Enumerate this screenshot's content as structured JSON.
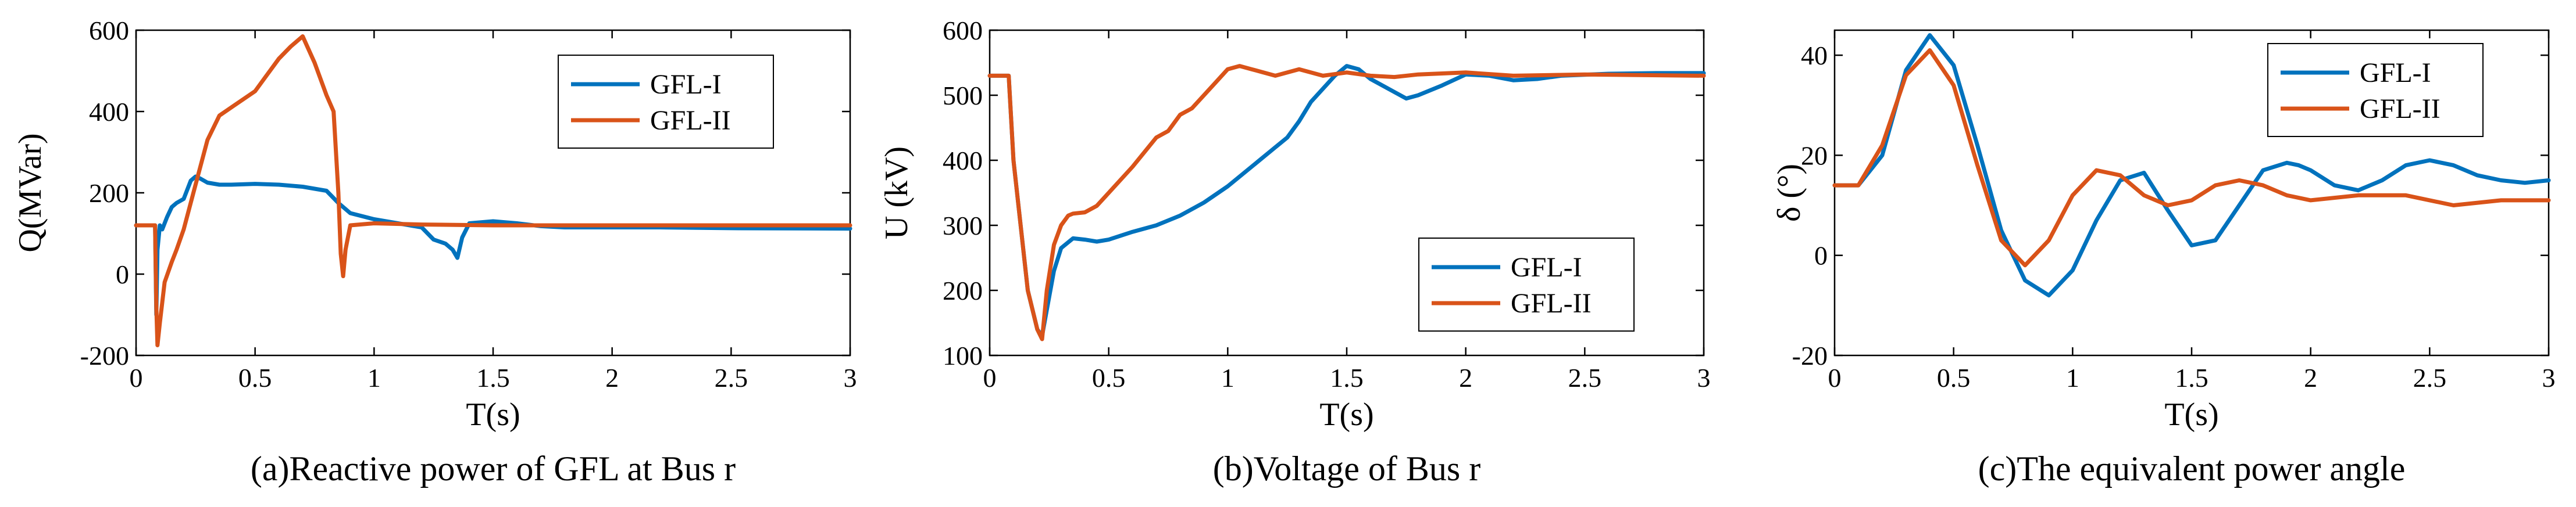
{
  "colors": {
    "gfl1": "#0072BD",
    "gfl2": "#D95319"
  },
  "chart_data": [
    {
      "type": "line",
      "caption": "(a)Reactive power of GFL at Bus r",
      "xlabel": "T(s)",
      "ylabel": "Q(MVar)",
      "xlim": [
        0,
        3
      ],
      "ylim": [
        -200,
        600
      ],
      "xticks": [
        "0",
        "0.5",
        "1",
        "1.5",
        "2",
        "2.5",
        "3"
      ],
      "yticks": [
        "-200",
        "0",
        "200",
        "400",
        "600"
      ],
      "legend": "top-right",
      "series": [
        {
          "name": "GFL-I",
          "x": [
            0,
            0.08,
            0.085,
            0.09,
            0.1,
            0.11,
            0.13,
            0.15,
            0.17,
            0.2,
            0.23,
            0.25,
            0.27,
            0.3,
            0.35,
            0.4,
            0.5,
            0.6,
            0.7,
            0.8,
            0.85,
            0.9,
            1.0,
            1.1,
            1.2,
            1.25,
            1.3,
            1.33,
            1.35,
            1.37,
            1.4,
            1.5,
            1.6,
            1.7,
            1.8,
            2.0,
            2.2,
            2.5,
            3.0
          ],
          "y": [
            120,
            120,
            -100,
            60,
            120,
            110,
            140,
            165,
            175,
            185,
            230,
            240,
            235,
            225,
            220,
            220,
            222,
            220,
            215,
            205,
            175,
            150,
            135,
            125,
            115,
            85,
            75,
            60,
            40,
            90,
            125,
            130,
            125,
            118,
            115,
            115,
            115,
            113,
            112
          ]
        },
        {
          "name": "GFL-II",
          "x": [
            0,
            0.08,
            0.085,
            0.09,
            0.1,
            0.12,
            0.15,
            0.17,
            0.2,
            0.25,
            0.3,
            0.35,
            0.4,
            0.5,
            0.55,
            0.6,
            0.65,
            0.7,
            0.75,
            0.8,
            0.83,
            0.85,
            0.86,
            0.87,
            0.88,
            0.9,
            1.0,
            1.2,
            1.5,
            2.0,
            2.5,
            3.0
          ],
          "y": [
            120,
            120,
            -80,
            -175,
            -120,
            -20,
            30,
            60,
            110,
            220,
            330,
            390,
            410,
            450,
            490,
            530,
            560,
            585,
            520,
            440,
            400,
            200,
            50,
            -5,
            60,
            120,
            125,
            122,
            120,
            120,
            120,
            120
          ]
        }
      ]
    },
    {
      "type": "line",
      "caption": "(b)Voltage of Bus r",
      "xlabel": "T(s)",
      "ylabel": "U (kV)",
      "xlim": [
        0,
        3
      ],
      "ylim": [
        100,
        600
      ],
      "xticks": [
        "0",
        "0.5",
        "1",
        "1.5",
        "2",
        "2.5",
        "3"
      ],
      "yticks": [
        "100",
        "200",
        "300",
        "400",
        "500",
        "600"
      ],
      "legend": "bottom-right",
      "series": [
        {
          "name": "GFL-I",
          "x": [
            0,
            0.08,
            0.1,
            0.13,
            0.16,
            0.2,
            0.22,
            0.24,
            0.27,
            0.3,
            0.35,
            0.4,
            0.45,
            0.5,
            0.6,
            0.7,
            0.8,
            0.9,
            1.0,
            1.1,
            1.2,
            1.25,
            1.3,
            1.35,
            1.4,
            1.45,
            1.5,
            1.55,
            1.6,
            1.7,
            1.75,
            1.8,
            1.9,
            2.0,
            2.1,
            2.2,
            2.3,
            2.4,
            2.6,
            2.8,
            3.0
          ],
          "y": [
            530,
            530,
            400,
            300,
            200,
            140,
            130,
            170,
            230,
            265,
            280,
            278,
            275,
            278,
            290,
            300,
            315,
            335,
            360,
            390,
            420,
            435,
            460,
            490,
            510,
            530,
            545,
            540,
            525,
            505,
            495,
            500,
            515,
            532,
            530,
            523,
            525,
            530,
            533,
            534,
            534
          ]
        },
        {
          "name": "GFL-II",
          "x": [
            0,
            0.08,
            0.1,
            0.13,
            0.16,
            0.2,
            0.22,
            0.24,
            0.27,
            0.3,
            0.33,
            0.35,
            0.4,
            0.45,
            0.5,
            0.6,
            0.7,
            0.75,
            0.8,
            0.85,
            0.9,
            0.95,
            1.0,
            1.05,
            1.1,
            1.2,
            1.3,
            1.4,
            1.5,
            1.6,
            1.7,
            1.8,
            2.0,
            2.2,
            2.5,
            3.0
          ],
          "y": [
            530,
            530,
            400,
            300,
            200,
            140,
            125,
            200,
            270,
            300,
            315,
            318,
            320,
            330,
            350,
            390,
            435,
            445,
            470,
            480,
            500,
            520,
            540,
            545,
            540,
            530,
            540,
            530,
            535,
            530,
            528,
            532,
            535,
            530,
            532,
            530
          ]
        }
      ]
    },
    {
      "type": "line",
      "caption": "(c)The equivalent power angle",
      "xlabel": "T(s)",
      "ylabel": "δ (°)",
      "xlim": [
        0,
        3
      ],
      "ylim": [
        -20,
        45
      ],
      "xticks": [
        "0",
        "0.5",
        "1",
        "1.5",
        "2",
        "2.5",
        "3"
      ],
      "yticks": [
        "-20",
        "0",
        "20",
        "40"
      ],
      "legend": "top-right",
      "series": [
        {
          "name": "GFL-I",
          "x": [
            0,
            0.1,
            0.2,
            0.3,
            0.4,
            0.5,
            0.6,
            0.7,
            0.8,
            0.9,
            1.0,
            1.1,
            1.2,
            1.3,
            1.4,
            1.5,
            1.6,
            1.7,
            1.8,
            1.9,
            1.95,
            2.0,
            2.1,
            2.2,
            2.3,
            2.4,
            2.5,
            2.6,
            2.7,
            2.8,
            2.9,
            3.0
          ],
          "y": [
            14,
            14,
            20,
            37,
            44,
            38,
            22,
            5,
            -5,
            -8,
            -3,
            7,
            15,
            16.5,
            9,
            2,
            3,
            10,
            17,
            18.5,
            18,
            17,
            14,
            13,
            15,
            18,
            19,
            18,
            16,
            15,
            14.5,
            15
          ]
        },
        {
          "name": "GFL-II",
          "x": [
            0,
            0.1,
            0.2,
            0.3,
            0.4,
            0.5,
            0.6,
            0.7,
            0.8,
            0.9,
            1.0,
            1.1,
            1.2,
            1.3,
            1.4,
            1.5,
            1.6,
            1.7,
            1.8,
            1.9,
            2.0,
            2.2,
            2.4,
            2.6,
            2.8,
            3.0
          ],
          "y": [
            14,
            14,
            22,
            36,
            41,
            34,
            18,
            3,
            -2,
            3,
            12,
            17,
            16,
            12,
            10,
            11,
            14,
            15,
            14,
            12,
            11,
            12,
            12,
            10,
            11,
            11
          ]
        }
      ]
    }
  ]
}
